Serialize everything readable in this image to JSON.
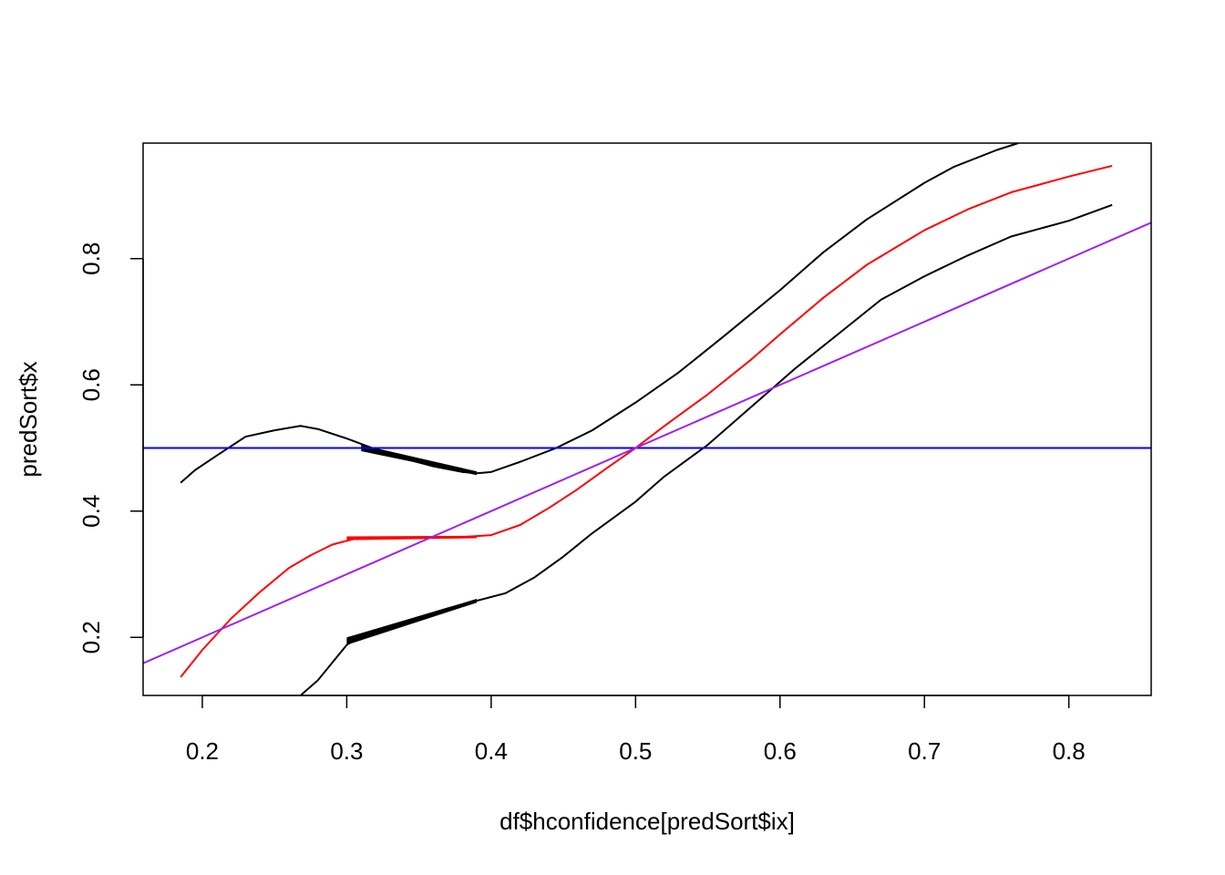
{
  "chart_data": {
    "type": "line",
    "title": "",
    "xlabel": "df$hconfidence[predSort$ix]",
    "ylabel": "predSort$x",
    "xlim": [
      0.159,
      0.857
    ],
    "ylim": [
      0.108,
      0.983
    ],
    "x_ticks": [
      "0.2",
      "0.3",
      "0.4",
      "0.5",
      "0.6",
      "0.7",
      "0.8"
    ],
    "y_ticks": [
      "0.2",
      "0.4",
      "0.6",
      "0.8"
    ],
    "grid": false,
    "legend": "none",
    "series": [
      {
        "color": "#ff0000",
        "values": [
          [
            0.185,
            0.137
          ],
          [
            0.2,
            0.18
          ],
          [
            0.22,
            0.23
          ],
          [
            0.24,
            0.272
          ],
          [
            0.26,
            0.31
          ],
          [
            0.275,
            0.33
          ],
          [
            0.29,
            0.347
          ],
          [
            0.305,
            0.356
          ],
          [
            0.32,
            0.358
          ],
          [
            0.35,
            0.358
          ],
          [
            0.38,
            0.359
          ],
          [
            0.4,
            0.362
          ],
          [
            0.42,
            0.378
          ],
          [
            0.44,
            0.405
          ],
          [
            0.46,
            0.435
          ],
          [
            0.48,
            0.468
          ],
          [
            0.5,
            0.5
          ],
          [
            0.52,
            0.535
          ],
          [
            0.55,
            0.585
          ],
          [
            0.58,
            0.64
          ],
          [
            0.6,
            0.68
          ],
          [
            0.63,
            0.738
          ],
          [
            0.66,
            0.79
          ],
          [
            0.7,
            0.845
          ],
          [
            0.73,
            0.878
          ],
          [
            0.76,
            0.905
          ],
          [
            0.8,
            0.93
          ],
          [
            0.83,
            0.947
          ]
        ]
      },
      {
        "color": "#000000",
        "values": [
          [
            0.185,
            0.445
          ],
          [
            0.195,
            0.465
          ],
          [
            0.21,
            0.488
          ],
          [
            0.23,
            0.518
          ],
          [
            0.25,
            0.528
          ],
          [
            0.268,
            0.535
          ],
          [
            0.28,
            0.53
          ],
          [
            0.3,
            0.515
          ],
          [
            0.32,
            0.498
          ],
          [
            0.34,
            0.483
          ],
          [
            0.36,
            0.471
          ],
          [
            0.38,
            0.462
          ],
          [
            0.39,
            0.46
          ],
          [
            0.4,
            0.462
          ],
          [
            0.42,
            0.478
          ],
          [
            0.445,
            0.5
          ],
          [
            0.47,
            0.528
          ],
          [
            0.5,
            0.572
          ],
          [
            0.53,
            0.62
          ],
          [
            0.56,
            0.675
          ],
          [
            0.6,
            0.75
          ],
          [
            0.63,
            0.81
          ],
          [
            0.66,
            0.862
          ],
          [
            0.7,
            0.92
          ],
          [
            0.72,
            0.945
          ],
          [
            0.75,
            0.972
          ],
          [
            0.765,
            0.983
          ]
        ]
      },
      {
        "color": "#000000",
        "values": [
          [
            0.268,
            0.108
          ],
          [
            0.28,
            0.132
          ],
          [
            0.29,
            0.16
          ],
          [
            0.3,
            0.188
          ],
          [
            0.31,
            0.202
          ],
          [
            0.33,
            0.218
          ],
          [
            0.35,
            0.232
          ],
          [
            0.37,
            0.246
          ],
          [
            0.39,
            0.258
          ],
          [
            0.41,
            0.27
          ],
          [
            0.43,
            0.295
          ],
          [
            0.45,
            0.328
          ],
          [
            0.47,
            0.365
          ],
          [
            0.5,
            0.415
          ],
          [
            0.52,
            0.455
          ],
          [
            0.55,
            0.505
          ],
          [
            0.58,
            0.565
          ],
          [
            0.61,
            0.625
          ],
          [
            0.64,
            0.68
          ],
          [
            0.67,
            0.735
          ],
          [
            0.7,
            0.772
          ],
          [
            0.73,
            0.805
          ],
          [
            0.76,
            0.835
          ],
          [
            0.8,
            0.86
          ],
          [
            0.83,
            0.885
          ]
        ]
      },
      {
        "color": "#0000ff",
        "values": [
          [
            0.159,
            0.5
          ],
          [
            0.857,
            0.5
          ]
        ]
      },
      {
        "color": "#a020f0",
        "values": [
          [
            0.159,
            0.159
          ],
          [
            0.857,
            0.857
          ]
        ]
      }
    ],
    "bands": [
      {
        "color": "#000000",
        "x": [
          0.31,
          0.39
        ],
        "upper": [
          0.505,
          0.463
        ],
        "lower": [
          0.495,
          0.457
        ]
      },
      {
        "color": "#000000",
        "x": [
          0.3,
          0.39
        ],
        "upper": [
          0.2,
          0.261
        ],
        "lower": [
          0.188,
          0.255
        ]
      },
      {
        "color": "#ff0000",
        "x": [
          0.3,
          0.39
        ],
        "upper": [
          0.36,
          0.361
        ],
        "lower": [
          0.354,
          0.357
        ]
      }
    ]
  }
}
